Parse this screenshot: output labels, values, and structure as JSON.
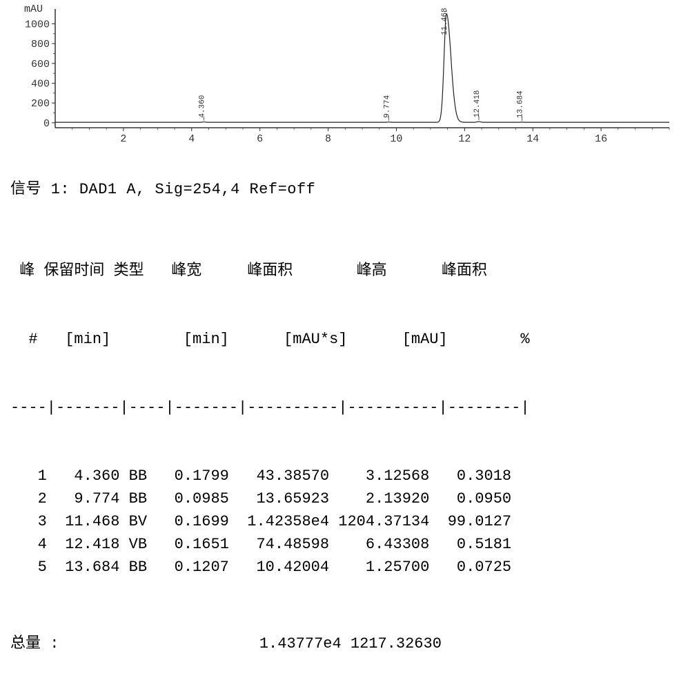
{
  "chart": {
    "type": "line",
    "y_label": "mAU",
    "x_range": [
      0,
      18
    ],
    "y_range": [
      -50,
      1150
    ],
    "x_ticks": [
      2,
      4,
      6,
      8,
      10,
      12,
      14,
      16
    ],
    "y_ticks": [
      0,
      200,
      400,
      600,
      800,
      1000
    ],
    "axis_color": "#333333",
    "tick_font_size": 15,
    "line_color": "#222222",
    "line_width": 1.2,
    "peak_label_font_size": 11,
    "peak_label_color": "#333333",
    "peaks": [
      {
        "rt": 4.36,
        "height": 3.13,
        "label": "4.360"
      },
      {
        "rt": 9.774,
        "height": 2.14,
        "label": "9.774"
      },
      {
        "rt": 11.468,
        "height": 1100.0,
        "label": "11.468"
      },
      {
        "rt": 12.418,
        "height": 6.43,
        "label": "12.418"
      },
      {
        "rt": 13.684,
        "height": 1.26,
        "label": "13.684"
      }
    ]
  },
  "signal_label_prefix": "信号",
  "signal_number": "1:",
  "signal_text": "DAD1 A, Sig=254,4 Ref=off",
  "table": {
    "headers": [
      "峰",
      "保留时间",
      "类型",
      "峰宽",
      "峰面积",
      "峰高",
      "峰面积"
    ],
    "units": [
      "#",
      "[min]",
      "",
      "[min]",
      "[mAU*s]",
      "[mAU]",
      "%"
    ],
    "separator": "----|-------|----|-------|----------|----------|--------|",
    "rows": [
      {
        "n": "1",
        "rt": "4.360",
        "type": "BB",
        "width": "0.1799",
        "area": "43.38570",
        "height": "3.12568",
        "areapct": "0.3018"
      },
      {
        "n": "2",
        "rt": "9.774",
        "type": "BB",
        "width": "0.0985",
        "area": "13.65923",
        "height": "2.13920",
        "areapct": "0.0950"
      },
      {
        "n": "3",
        "rt": "11.468",
        "type": "BV",
        "width": "0.1699",
        "area": "1.42358e4",
        "height": "1204.37134",
        "areapct": "99.0127"
      },
      {
        "n": "4",
        "rt": "12.418",
        "type": "VB",
        "width": "0.1651",
        "area": "74.48598",
        "height": "6.43308",
        "areapct": "0.5181"
      },
      {
        "n": "5",
        "rt": "13.684",
        "type": "BB",
        "width": "0.1207",
        "area": "10.42004",
        "height": "1.25700",
        "areapct": "0.0725"
      }
    ],
    "total_label": "总量",
    "total_colon": ":",
    "total_area": "1.43777e4",
    "total_height": "1217.32630"
  }
}
